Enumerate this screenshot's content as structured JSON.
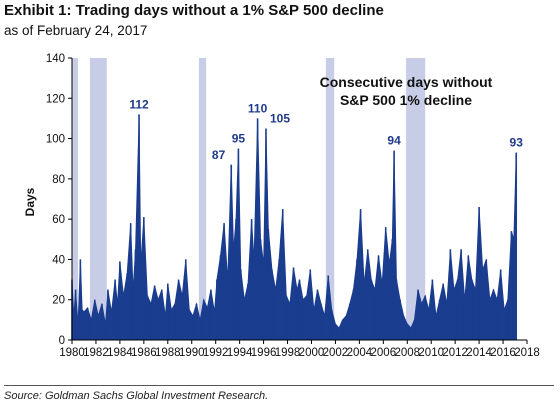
{
  "header": {
    "title": "Exhibit 1: Trading days without a 1% S&P 500 decline",
    "subtitle": "as of February 24, 2017"
  },
  "footer": {
    "source": "Source: Goldman Sachs Global Investment Research."
  },
  "colors": {
    "series": "#1a3d8f",
    "recession_shade": "#c7cde6",
    "annotation": "#1e3a8a"
  },
  "chart_data": {
    "type": "area",
    "title": "Exhibit 1: Trading days without a 1% S&P 500 decline",
    "ylabel": "Days",
    "xlabel": "",
    "xlim": [
      1980,
      2018
    ],
    "ylim": [
      0,
      140
    ],
    "y_ticks": [
      0,
      20,
      40,
      60,
      80,
      100,
      120,
      140
    ],
    "x_ticks": [
      1980,
      1982,
      1984,
      1986,
      1988,
      1990,
      1992,
      1994,
      1996,
      1998,
      2000,
      2002,
      2004,
      2006,
      2008,
      2010,
      2012,
      2014,
      2016,
      2018
    ],
    "grid": false,
    "legend": "none",
    "callout": [
      "Consecutive days without",
      "S&P 500 1% decline"
    ],
    "recessions": [
      {
        "start": 1980.0,
        "end": 1980.5
      },
      {
        "start": 1981.5,
        "end": 1982.9
      },
      {
        "start": 1990.6,
        "end": 1991.2
      },
      {
        "start": 2001.2,
        "end": 2001.9
      },
      {
        "start": 2007.9,
        "end": 2009.5
      }
    ],
    "peaks": [
      {
        "x": 1985.6,
        "y": 112,
        "label": "112"
      },
      {
        "x": 1993.3,
        "y": 87,
        "label": "87"
      },
      {
        "x": 1993.9,
        "y": 95,
        "label": "95"
      },
      {
        "x": 1995.5,
        "y": 110,
        "label": "110"
      },
      {
        "x": 1996.2,
        "y": 105,
        "label": "105"
      },
      {
        "x": 2006.9,
        "y": 94,
        "label": "94"
      },
      {
        "x": 2017.1,
        "y": 93,
        "label": "93"
      }
    ],
    "series": [
      {
        "x": [
          1980.0,
          1980.15,
          1980.3,
          1980.5,
          1980.7,
          1980.85,
          1981.0,
          1981.3,
          1981.6,
          1981.9,
          1982.2,
          1982.5,
          1982.8,
          1983.0,
          1983.3,
          1983.6,
          1983.8,
          1984.0,
          1984.3,
          1984.6,
          1984.9,
          1985.1,
          1985.3,
          1985.6,
          1985.75,
          1986.0,
          1986.3,
          1986.6,
          1986.9,
          1987.2,
          1987.5,
          1987.8,
          1988.0,
          1988.3,
          1988.6,
          1988.9,
          1989.2,
          1989.5,
          1989.8,
          1990.1,
          1990.4,
          1990.7,
          1991.0,
          1991.3,
          1991.6,
          1991.9,
          1992.1,
          1992.4,
          1992.7,
          1993.0,
          1993.3,
          1993.5,
          1993.7,
          1993.9,
          1994.1,
          1994.4,
          1994.7,
          1995.0,
          1995.2,
          1995.5,
          1995.75,
          1996.0,
          1996.2,
          1996.4,
          1996.7,
          1997.0,
          1997.3,
          1997.6,
          1997.9,
          1998.2,
          1998.5,
          1998.8,
          1999.0,
          1999.3,
          1999.6,
          1999.9,
          2000.2,
          2000.5,
          2000.8,
          2001.1,
          2001.4,
          2001.7,
          2002.0,
          2002.3,
          2002.6,
          2002.9,
          2003.2,
          2003.5,
          2003.8,
          2004.1,
          2004.4,
          2004.7,
          2005.0,
          2005.3,
          2005.6,
          2005.9,
          2006.2,
          2006.5,
          2006.75,
          2006.9,
          2007.1,
          2007.4,
          2007.7,
          2008.0,
          2008.3,
          2008.6,
          2008.9,
          2009.2,
          2009.5,
          2009.8,
          2010.1,
          2010.4,
          2010.7,
          2011.0,
          2011.3,
          2011.6,
          2011.9,
          2012.2,
          2012.5,
          2012.8,
          2013.1,
          2013.4,
          2013.7,
          2014.0,
          2014.3,
          2014.6,
          2014.9,
          2015.2,
          2015.5,
          2015.8,
          2016.1,
          2016.4,
          2016.7,
          2016.9,
          2017.1
        ],
        "values": [
          30,
          12,
          25,
          8,
          40,
          15,
          14,
          16,
          10,
          20,
          12,
          18,
          8,
          25,
          14,
          30,
          18,
          39,
          22,
          33,
          58,
          25,
          45,
          112,
          38,
          61,
          22,
          18,
          27,
          20,
          25,
          12,
          28,
          15,
          18,
          30,
          22,
          40,
          15,
          12,
          18,
          10,
          20,
          16,
          25,
          14,
          30,
          42,
          58,
          30,
          87,
          45,
          60,
          95,
          35,
          20,
          28,
          60,
          40,
          110,
          50,
          38,
          105,
          55,
          35,
          25,
          40,
          65,
          22,
          18,
          36,
          25,
          30,
          20,
          22,
          35,
          15,
          25,
          18,
          12,
          32,
          15,
          8,
          6,
          10,
          12,
          18,
          25,
          40,
          65,
          28,
          45,
          30,
          25,
          42,
          28,
          56,
          38,
          50,
          94,
          30,
          20,
          12,
          8,
          6,
          10,
          25,
          18,
          22,
          15,
          30,
          12,
          20,
          28,
          18,
          45,
          25,
          30,
          45,
          20,
          42,
          30,
          25,
          66,
          35,
          40,
          20,
          25,
          20,
          35,
          15,
          20,
          54,
          50,
          93
        ]
      }
    ]
  }
}
